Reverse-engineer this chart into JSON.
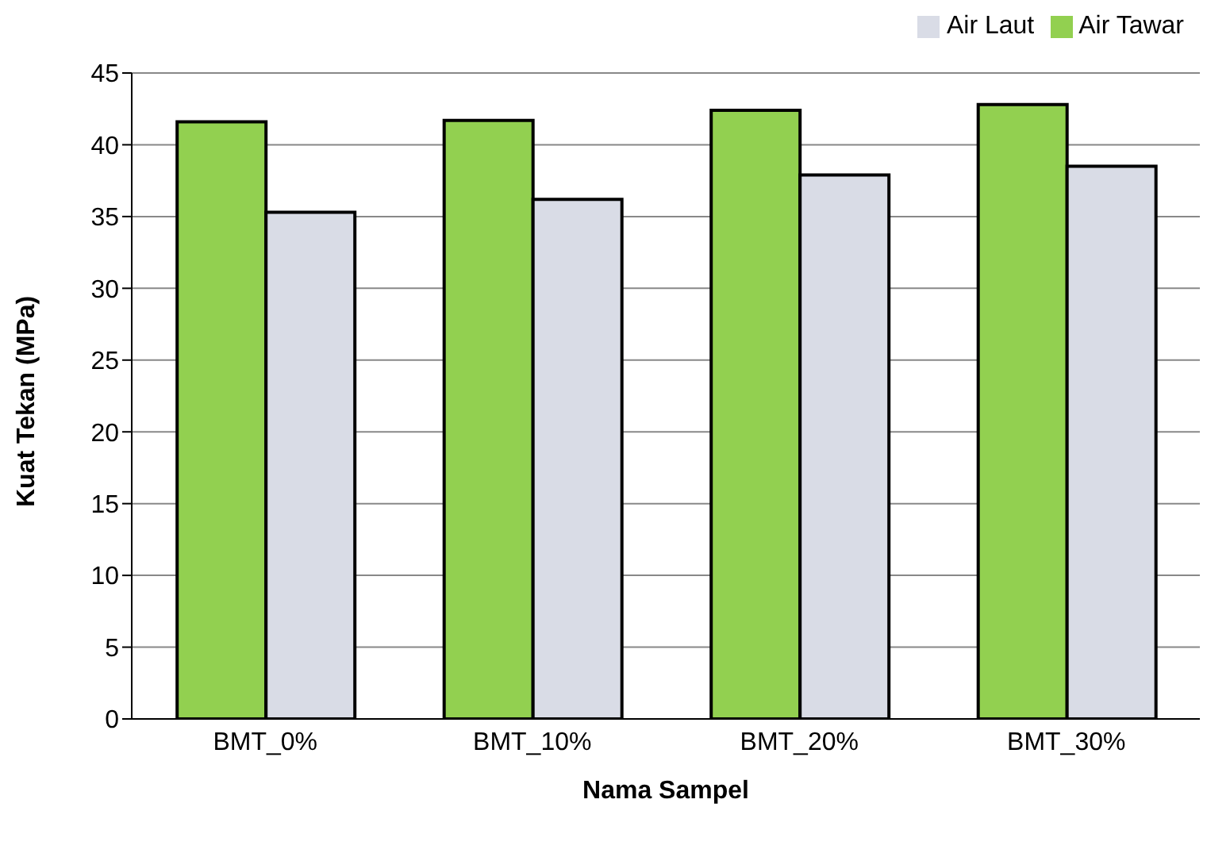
{
  "chart_data": {
    "type": "bar",
    "xlabel": "Nama  Sampel",
    "ylabel": "Kuat Tekan (MPa)",
    "categories": [
      "BMT_0%",
      "BMT_10%",
      "BMT_20%",
      "BMT_30%"
    ],
    "series": [
      {
        "name": "Air Tawar",
        "color": "#92d050",
        "values": [
          41.6,
          41.7,
          42.4,
          42.8
        ]
      },
      {
        "name": "Air Laut",
        "color": "#d9dce6",
        "values": [
          35.3,
          36.2,
          37.9,
          38.5
        ]
      }
    ],
    "ylim": [
      0,
      45
    ],
    "yticks": [
      0,
      5,
      10,
      15,
      20,
      25,
      30,
      35,
      40,
      45
    ],
    "grid": "y",
    "legend": "top right"
  }
}
